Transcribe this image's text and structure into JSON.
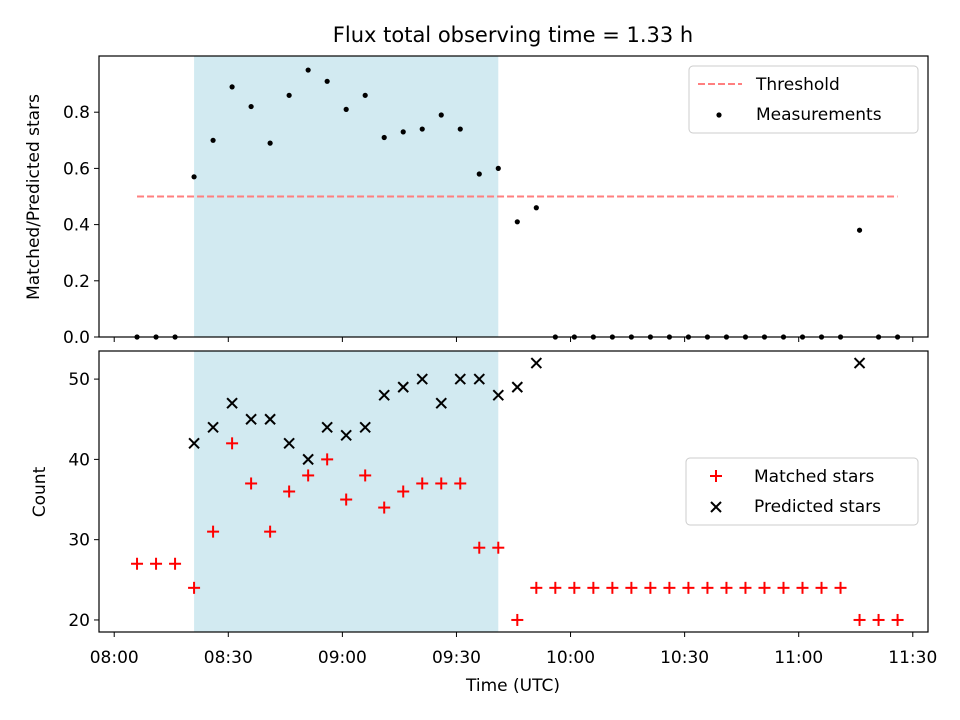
{
  "chart_data": [
    {
      "type": "scatter",
      "title": "Flux total observing time = 1.33 h",
      "xlabel": "",
      "ylabel": "Matched/Predicted stars",
      "ylim": [
        0,
        1.0
      ],
      "yticks": [
        "0.0",
        "0.2",
        "0.4",
        "0.6",
        "0.8"
      ],
      "ytick_values": [
        0,
        0.2,
        0.4,
        0.6,
        0.8
      ],
      "xlim": [
        "07:56",
        "11:34"
      ],
      "shaded_region": [
        "08:21",
        "09:41"
      ],
      "shaded_color": "#add8e6",
      "legend_position": "upper right",
      "threshold": {
        "name": "Threshold",
        "value": 0.5,
        "x_range": [
          "08:06",
          "11:26"
        ],
        "color": "#ff7f7f",
        "style": "dashed"
      },
      "series": [
        {
          "name": "Measurements",
          "color": "#000000",
          "marker": "dot",
          "x": [
            "08:06",
            "08:11",
            "08:16",
            "08:21",
            "08:26",
            "08:31",
            "08:36",
            "08:41",
            "08:46",
            "08:51",
            "08:56",
            "09:01",
            "09:06",
            "09:11",
            "09:16",
            "09:21",
            "09:26",
            "09:31",
            "09:36",
            "09:41",
            "09:46",
            "09:51",
            "09:56",
            "10:01",
            "10:06",
            "10:11",
            "10:16",
            "10:21",
            "10:26",
            "10:31",
            "10:36",
            "10:41",
            "10:46",
            "10:51",
            "10:56",
            "11:01",
            "11:06",
            "11:11",
            "11:16",
            "11:21",
            "11:26"
          ],
          "y": [
            0,
            0,
            0,
            0.57,
            0.7,
            0.89,
            0.82,
            0.69,
            0.86,
            0.95,
            0.91,
            0.81,
            0.86,
            0.71,
            0.73,
            0.74,
            0.79,
            0.74,
            0.58,
            0.6,
            0.41,
            0.46,
            0,
            0,
            0,
            0,
            0,
            0,
            0,
            0,
            0,
            0,
            0,
            0,
            0,
            0,
            0,
            0,
            0.38,
            0,
            0
          ]
        }
      ]
    },
    {
      "type": "scatter",
      "title": "",
      "xlabel": "Time (UTC)",
      "ylabel": "Count",
      "ylim": [
        18.5,
        53.5
      ],
      "yticks": [
        "20",
        "30",
        "40",
        "50"
      ],
      "ytick_values": [
        20,
        30,
        40,
        50
      ],
      "xlim": [
        "07:56",
        "11:34"
      ],
      "xticks": [
        "08:00",
        "08:30",
        "09:00",
        "09:30",
        "10:00",
        "10:30",
        "11:00",
        "11:30"
      ],
      "shaded_region": [
        "08:21",
        "09:41"
      ],
      "shaded_color": "#add8e6",
      "legend_position": "center right",
      "series": [
        {
          "name": "Matched stars",
          "color": "#ff0000",
          "marker": "plus",
          "x": [
            "08:06",
            "08:11",
            "08:16",
            "08:21",
            "08:26",
            "08:31",
            "08:36",
            "08:41",
            "08:46",
            "08:51",
            "08:56",
            "09:01",
            "09:06",
            "09:11",
            "09:16",
            "09:21",
            "09:26",
            "09:31",
            "09:36",
            "09:41",
            "09:46",
            "09:51",
            "09:56",
            "10:01",
            "10:06",
            "10:11",
            "10:16",
            "10:21",
            "10:26",
            "10:31",
            "10:36",
            "10:41",
            "10:46",
            "10:51",
            "10:56",
            "11:01",
            "11:06",
            "11:11",
            "11:16",
            "11:21",
            "11:26"
          ],
          "y": [
            27,
            27,
            27,
            24,
            31,
            42,
            37,
            31,
            36,
            38,
            40,
            35,
            38,
            34,
            36,
            37,
            37,
            37,
            29,
            29,
            20,
            24,
            24,
            24,
            24,
            24,
            24,
            24,
            24,
            24,
            24,
            24,
            24,
            24,
            24,
            24,
            24,
            24,
            20,
            20,
            20
          ]
        },
        {
          "name": "Predicted stars",
          "color": "#000000",
          "marker": "x",
          "x": [
            "08:21",
            "08:26",
            "08:31",
            "08:36",
            "08:41",
            "08:46",
            "08:51",
            "08:56",
            "09:01",
            "09:06",
            "09:11",
            "09:16",
            "09:21",
            "09:26",
            "09:31",
            "09:36",
            "09:41",
            "09:46",
            "09:51",
            "11:16"
          ],
          "y": [
            42,
            44,
            47,
            45,
            45,
            42,
            40,
            44,
            43,
            44,
            48,
            49,
            50,
            47,
            50,
            50,
            48,
            49,
            52,
            52
          ]
        }
      ]
    }
  ]
}
